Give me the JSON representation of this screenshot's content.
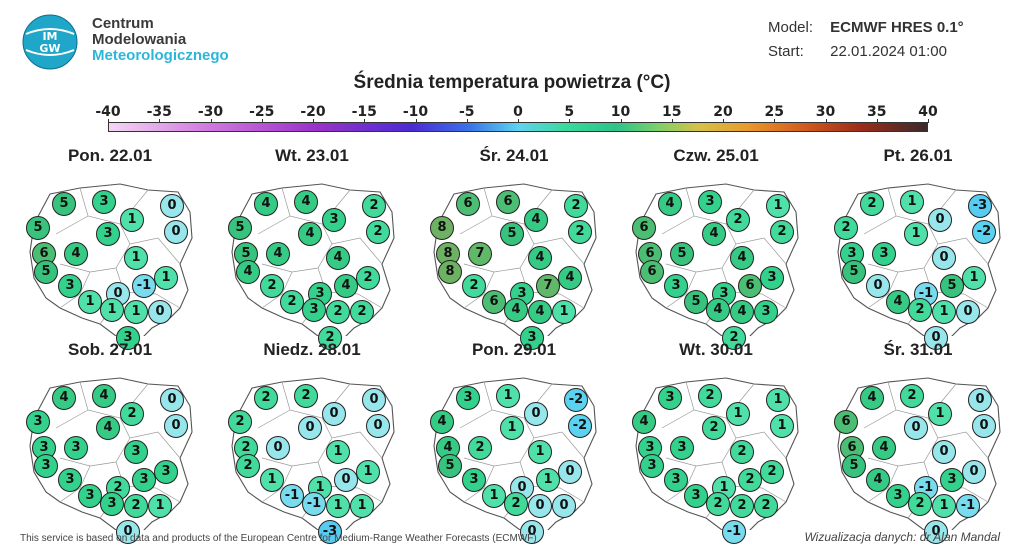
{
  "logo": {
    "mark_text": "IMGW",
    "line1": "Centrum",
    "line2": "Modelowania",
    "line3": "Meteorologicznego"
  },
  "model": {
    "model_label": "Model:",
    "model_value": "ECMWF HRES 0.1°",
    "start_label": "Start:",
    "start_value": "22.01.2024 01:00"
  },
  "title": "Średnia temperatura powietrza (°C)",
  "scale": {
    "labels": [
      "-40",
      "-35",
      "-30",
      "-25",
      "-20",
      "-15",
      "-10",
      "-5",
      "0",
      "5",
      "10",
      "15",
      "20",
      "25",
      "30",
      "35",
      "40"
    ],
    "min": -40,
    "max": 40
  },
  "colors": {
    "map_fill": "#ffffff",
    "map_border": "#555555",
    "city_border": "#222222"
  },
  "panels": [
    {
      "day": "Pon. 22.01",
      "values": [
        5,
        3,
        0,
        5,
        1,
        0,
        6,
        4,
        3,
        5,
        1,
        1,
        3,
        -1,
        0,
        1,
        1,
        1,
        0,
        3
      ]
    },
    {
      "day": "Wt. 23.01",
      "values": [
        4,
        4,
        2,
        5,
        3,
        2,
        5,
        4,
        4,
        4,
        4,
        2,
        2,
        4,
        3,
        2,
        3,
        2,
        2,
        2
      ]
    },
    {
      "day": "Śr. 24.01",
      "values": [
        6,
        6,
        2,
        8,
        4,
        2,
        8,
        7,
        5,
        8,
        4,
        4,
        2,
        7,
        3,
        6,
        4,
        4,
        1,
        3
      ]
    },
    {
      "day": "Czw. 25.01",
      "values": [
        4,
        3,
        1,
        6,
        2,
        2,
        6,
        5,
        4,
        6,
        4,
        3,
        3,
        6,
        3,
        5,
        4,
        4,
        3,
        2
      ]
    },
    {
      "day": "Pt. 26.01",
      "values": [
        2,
        1,
        -3,
        2,
        0,
        -2,
        3,
        3,
        1,
        5,
        0,
        1,
        0,
        5,
        -1,
        4,
        2,
        1,
        0,
        0
      ]
    },
    {
      "day": "Sob. 27.01",
      "values": [
        4,
        4,
        0,
        3,
        2,
        0,
        3,
        3,
        4,
        3,
        3,
        3,
        3,
        3,
        2,
        3,
        3,
        2,
        1,
        0
      ]
    },
    {
      "day": "Niedz. 28.01",
      "values": [
        2,
        2,
        0,
        2,
        0,
        0,
        2,
        0,
        0,
        2,
        1,
        1,
        1,
        0,
        1,
        -1,
        -1,
        1,
        1,
        -3
      ]
    },
    {
      "day": "Pon. 29.01",
      "values": [
        3,
        1,
        -2,
        4,
        0,
        -2,
        4,
        2,
        1,
        5,
        1,
        0,
        3,
        1,
        0,
        1,
        2,
        0,
        0,
        0
      ]
    },
    {
      "day": "Wt. 30.01",
      "values": [
        3,
        2,
        1,
        4,
        1,
        1,
        3,
        3,
        2,
        3,
        2,
        2,
        3,
        2,
        1,
        3,
        2,
        2,
        2,
        -1
      ]
    },
    {
      "day": "Śr. 31.01",
      "values": [
        4,
        2,
        0,
        6,
        1,
        0,
        6,
        4,
        0,
        5,
        0,
        0,
        4,
        3,
        -1,
        3,
        2,
        1,
        -1,
        0
      ]
    }
  ],
  "footer_left": "This service is based on data and products of the European Centre for Medium-Range Weather Forecasts (ECMWF)",
  "footer_right": "Wizualizacja danych: dr Alan Mandal"
}
